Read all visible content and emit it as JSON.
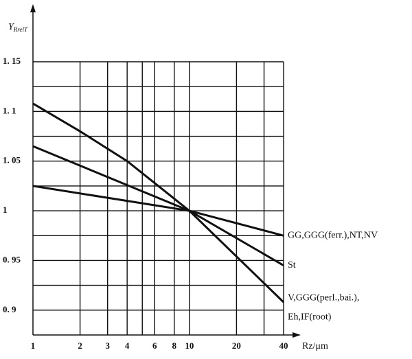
{
  "chart_data": {
    "type": "line",
    "log_x": true,
    "ylabel": "Y",
    "ylabel_sub": "RrelT",
    "xlabel": "Rz/μm",
    "xlim": [
      1,
      40
    ],
    "ylim": [
      0.875,
      1.15
    ],
    "xticks": [
      1,
      2,
      3,
      4,
      6,
      8,
      10,
      20,
      40
    ],
    "xgrid_extra": [
      5,
      30
    ],
    "yticks": [
      {
        "value": 0.9,
        "label": "0. 9"
      },
      {
        "value": 0.95,
        "label": "0. 95"
      },
      1,
      {
        "value": 1.05,
        "label": "1. 05"
      },
      {
        "value": 1.1,
        "label": "1. 1"
      },
      {
        "value": 1.15,
        "label": "1. 15"
      }
    ],
    "ygrid_extra": [
      0.925,
      0.975,
      1.025,
      1.075,
      1.125
    ],
    "grid": true,
    "series": [
      {
        "label": [
          "GG,GGG(ferr.),NT,NV"
        ],
        "color": "#111111",
        "x": [
          1,
          10,
          40
        ],
        "values": [
          1.025,
          1.0,
          0.975
        ]
      },
      {
        "label": [
          "St"
        ],
        "color": "#111111",
        "x": [
          1,
          10,
          40
        ],
        "values": [
          1.065,
          1.0,
          0.945
        ]
      },
      {
        "label": [
          "V,GGG(perl.,bai.),",
          "Eh,IF(root)"
        ],
        "color": "#111111",
        "x": [
          1,
          2,
          4,
          10,
          40
        ],
        "values": [
          1.108,
          1.08,
          1.05,
          1.0,
          0.908
        ]
      }
    ]
  }
}
